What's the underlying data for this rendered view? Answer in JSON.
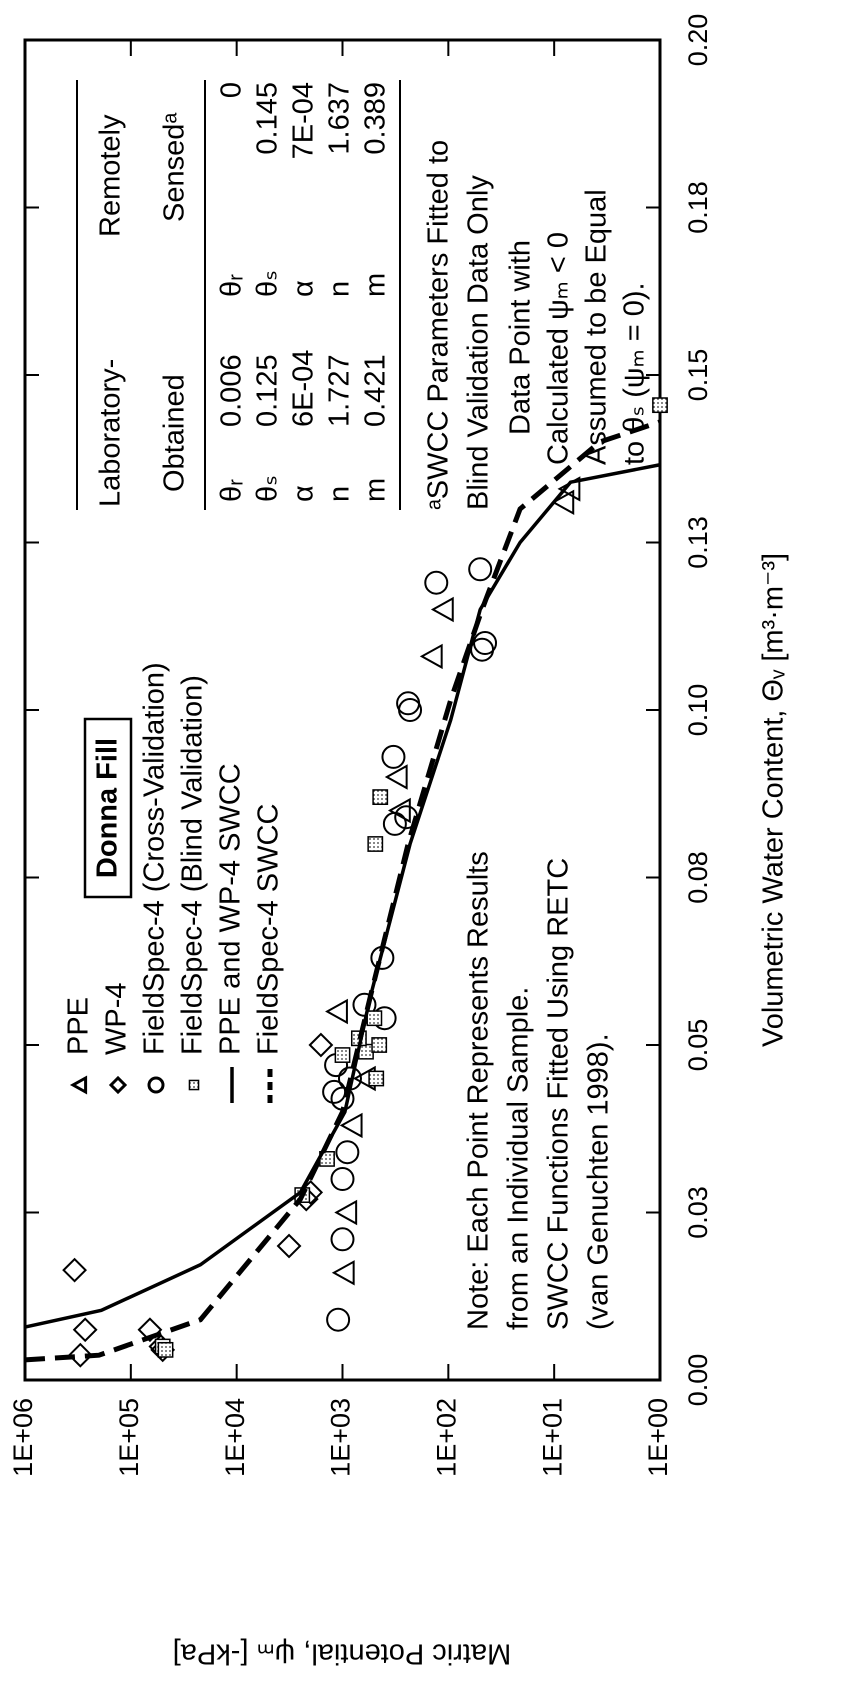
{
  "chart_data": {
    "type": "scatter",
    "xlabel": "Volumetric Water Content, Θᵥ [m³·m⁻³]",
    "ylabel": "Matric Potential, ψₘ [-kPa]",
    "xlim": [
      0,
      0.2
    ],
    "ylim": [
      1,
      1000000
    ],
    "log_y": true,
    "xticks": [
      {
        "value": 0,
        "label": "0.00"
      },
      {
        "value": 0.025,
        "label": "0.03"
      },
      {
        "value": 0.05,
        "label": "0.05"
      },
      {
        "value": 0.075,
        "label": "0.08"
      },
      {
        "value": 0.1,
        "label": "0.10"
      },
      {
        "value": 0.125,
        "label": "0.13"
      },
      {
        "value": 0.15,
        "label": "0.15"
      },
      {
        "value": 0.175,
        "label": "0.18"
      },
      {
        "value": 0.2,
        "label": "0.20"
      }
    ],
    "yticks": [
      {
        "value": 1,
        "label": "1E+00"
      },
      {
        "value": 10,
        "label": "1E+01"
      },
      {
        "value": 100,
        "label": "1E+02"
      },
      {
        "value": 1000,
        "label": "1E+03"
      },
      {
        "value": 10000,
        "label": "1E+04"
      },
      {
        "value": 100000,
        "label": "1E+05"
      },
      {
        "value": 1000000,
        "label": "1E+06"
      }
    ],
    "legend_title": "Donna Fill",
    "series": [
      {
        "name": "PPE",
        "color": "#000000",
        "marker": "triangle",
        "x": [
          0.016,
          0.025,
          0.038,
          0.045,
          0.055,
          0.085,
          0.09,
          0.108,
          0.115,
          0.131,
          0.133
        ],
        "values": [
          950,
          900,
          800,
          600,
          1100,
          280,
          300,
          140,
          110,
          8,
          7
        ]
      },
      {
        "name": "WP-4",
        "color": "#000000",
        "marker": "diamond",
        "x": [
          0.0037,
          0.0075,
          0.0164,
          0.0075,
          0.005,
          0.0045,
          0.02,
          0.027,
          0.028,
          0.05
        ],
        "values": [
          300000,
          270000,
          340000,
          66000,
          52000,
          50000,
          3200,
          2200,
          2000,
          1600
        ]
      },
      {
        "name": "FieldSpec-4 (Cross-Validation)",
        "color": "#000000",
        "marker": "circle",
        "x": [
          0.009,
          0.021,
          0.03,
          0.034,
          0.042,
          0.043,
          0.047,
          0.045,
          0.056,
          0.054,
          0.063,
          0.083,
          0.084,
          0.093,
          0.1,
          0.101,
          0.119,
          0.121,
          0.11,
          0.109
        ],
        "values": [
          1100,
          1000,
          1000,
          900,
          1000,
          1200,
          1150,
          850,
          620,
          400,
          420,
          320,
          250,
          330,
          230,
          240,
          130,
          50,
          45,
          48
        ]
      },
      {
        "name": "FieldSpec-4 (Blind Validation)",
        "color": "#000000",
        "marker": "square",
        "x": [
          0.033,
          0.0276,
          0.0485,
          0.049,
          0.045,
          0.05,
          0.051,
          0.054,
          0.08,
          0.087,
          0.005,
          0.0045,
          0.1455
        ],
        "values": [
          1400,
          2400,
          1000,
          600,
          480,
          450,
          700,
          500,
          490,
          440,
          50000,
          47000,
          1
        ]
      },
      {
        "name": "PPE and WP-4 SWCC",
        "color": "#000000",
        "style": "solid",
        "x": [
          0.0079,
          0.0104,
          0.0172,
          0.028,
          0.04,
          0.057,
          0.08,
          0.0985,
          0.115,
          0.125,
          0.134,
          0.1366
        ],
        "values": [
          1000000,
          190000,
          22000,
          2500,
          950,
          550,
          230,
          95,
          50,
          21,
          7,
          1
        ]
      },
      {
        "name": "FieldSpec-4 SWCC",
        "color": "#000000",
        "style": "dashed",
        "x": [
          0.003,
          0.0037,
          0.009,
          0.027,
          0.04,
          0.057,
          0.08,
          0.1015,
          0.115,
          0.13,
          0.14,
          0.143
        ],
        "values": [
          1000000,
          200000,
          22000,
          2500,
          1000,
          550,
          240,
          95,
          48,
          21,
          3.7,
          1
        ]
      }
    ],
    "note": [
      "Note: Each Point Represents Results",
      "from an Individual Sample.",
      "SWCC Functions Fitted Using RETC",
      "(van Genuchten 1998)."
    ],
    "parameter_table": {
      "headers": [
        [
          "Laboratory-",
          "Obtained"
        ],
        [
          "Remotely",
          "Sensedᵃ"
        ]
      ],
      "rows": [
        [
          "θᵣ",
          "0.006",
          "θᵣ",
          "0"
        ],
        [
          "θₛ",
          "0.125",
          "θₛ",
          "0.145"
        ],
        [
          "α",
          "6E-04",
          "α",
          "7E-04"
        ],
        [
          "n",
          "1.727",
          "n",
          "1.637"
        ],
        [
          "m",
          "0.421",
          "m",
          "0.389"
        ]
      ],
      "footnote": [
        "ᵃSWCC Parameters Fitted to",
        "Blind Validation Data Only"
      ]
    },
    "annotation": [
      "Data Point with",
      "Calculated ψₘ < 0",
      "Assumed to be Equal",
      "to θₛ (ψₘ = 0)."
    ]
  }
}
